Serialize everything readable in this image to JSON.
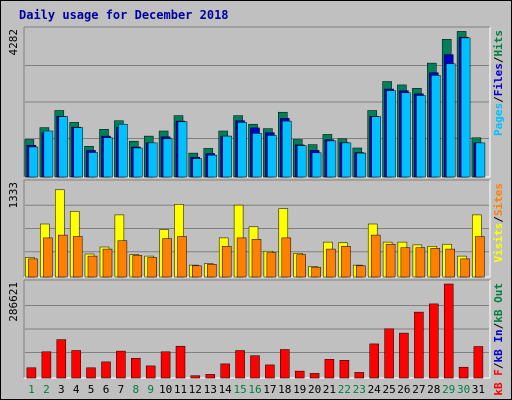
{
  "title": "Daily usage for December 2018",
  "chart_data": [
    {
      "type": "bar",
      "name": "hits-files-pages",
      "categories": [
        "1",
        "2",
        "3",
        "4",
        "5",
        "6",
        "7",
        "8",
        "9",
        "10",
        "11",
        "12",
        "13",
        "14",
        "15",
        "16",
        "17",
        "18",
        "19",
        "20",
        "21",
        "22",
        "23",
        "24",
        "25",
        "26",
        "27",
        "28",
        "29",
        "30",
        "31"
      ],
      "weekend_days": [
        "1",
        "2",
        "8",
        "9",
        "15",
        "16",
        "22",
        "23",
        "29",
        "30"
      ],
      "ymax_label": "4282",
      "ymax": 4282,
      "right_label": [
        "Pages",
        "/",
        "Files",
        "/",
        "Hits"
      ],
      "right_label_colors": [
        "#00c0ff",
        "#000000",
        "#0000cc",
        "#000000",
        "#008040"
      ],
      "series": [
        {
          "name": "Hits",
          "color": "#00805a",
          "values": [
            1100,
            1450,
            1950,
            1600,
            900,
            1400,
            1650,
            1050,
            1200,
            1350,
            1800,
            700,
            840,
            1350,
            1800,
            1550,
            1420,
            1900,
            1100,
            950,
            1250,
            1120,
            850,
            1950,
            2800,
            2700,
            2600,
            3340,
            4040,
            4270,
            1150
          ]
        },
        {
          "name": "Files",
          "color": "#0000cc",
          "values": [
            930,
            1300,
            1780,
            1460,
            780,
            1200,
            1460,
            880,
            1000,
            1180,
            1640,
            580,
            690,
            1200,
            1650,
            1440,
            1300,
            1720,
            940,
            780,
            1090,
            1010,
            720,
            1780,
            2580,
            2530,
            2440,
            3060,
            3590,
            4100,
            1000
          ]
        },
        {
          "name": "Pages",
          "color": "#00c0ff",
          "values": [
            880,
            1350,
            1770,
            1450,
            720,
            1150,
            1550,
            850,
            1000,
            1120,
            1620,
            540,
            640,
            1200,
            1600,
            1280,
            1220,
            1640,
            920,
            710,
            1060,
            1000,
            700,
            1770,
            2530,
            2470,
            2390,
            2980,
            3320,
            4080,
            1000
          ]
        }
      ]
    },
    {
      "type": "bar",
      "name": "visits-sites",
      "categories": [
        "1",
        "2",
        "3",
        "4",
        "5",
        "6",
        "7",
        "8",
        "9",
        "10",
        "11",
        "12",
        "13",
        "14",
        "15",
        "16",
        "17",
        "18",
        "19",
        "20",
        "21",
        "22",
        "23",
        "24",
        "25",
        "26",
        "27",
        "28",
        "29",
        "30",
        "31"
      ],
      "ymax_label": "1333",
      "ymax": 1333,
      "right_label": [
        "Visits",
        "/",
        "Sites"
      ],
      "right_label_colors": [
        "#ffff00",
        "#000000",
        "#ff8000"
      ],
      "series": [
        {
          "name": "Visits",
          "color": "#ffff00",
          "values": [
            280,
            760,
            1250,
            940,
            330,
            430,
            890,
            320,
            300,
            680,
            1040,
            170,
            190,
            560,
            1030,
            720,
            370,
            980,
            340,
            150,
            500,
            490,
            170,
            760,
            500,
            500,
            460,
            440,
            470,
            300,
            890
          ]
        },
        {
          "name": "Sites",
          "color": "#ff8000",
          "values": [
            260,
            560,
            600,
            580,
            300,
            400,
            520,
            310,
            280,
            550,
            580,
            160,
            180,
            440,
            560,
            540,
            350,
            560,
            320,
            140,
            400,
            440,
            160,
            600,
            470,
            420,
            420,
            410,
            400,
            260,
            580
          ]
        }
      ]
    },
    {
      "type": "bar",
      "name": "kbytes",
      "categories": [
        "1",
        "2",
        "3",
        "4",
        "5",
        "6",
        "7",
        "8",
        "9",
        "10",
        "11",
        "12",
        "13",
        "14",
        "15",
        "16",
        "17",
        "18",
        "19",
        "20",
        "21",
        "22",
        "23",
        "24",
        "25",
        "26",
        "27",
        "28",
        "29",
        "30",
        "31"
      ],
      "ymax_label": "286621",
      "ymax": 286621,
      "right_label": [
        "kB F",
        "/",
        "kB In",
        "/",
        "kB Out"
      ],
      "right_label_colors": [
        "#ff0000",
        "#000000",
        "#0000cc",
        "#000000",
        "#008040"
      ],
      "series": [
        {
          "name": "kB F",
          "color": "#ff0000",
          "values": [
            31000,
            80000,
            117000,
            84000,
            31000,
            49000,
            82000,
            60000,
            37000,
            80000,
            97000,
            7000,
            11000,
            43000,
            84000,
            68000,
            40000,
            87000,
            21000,
            14000,
            57000,
            54000,
            17000,
            104000,
            150000,
            137000,
            201000,
            226000,
            286621,
            33000,
            96000
          ]
        }
      ]
    }
  ]
}
